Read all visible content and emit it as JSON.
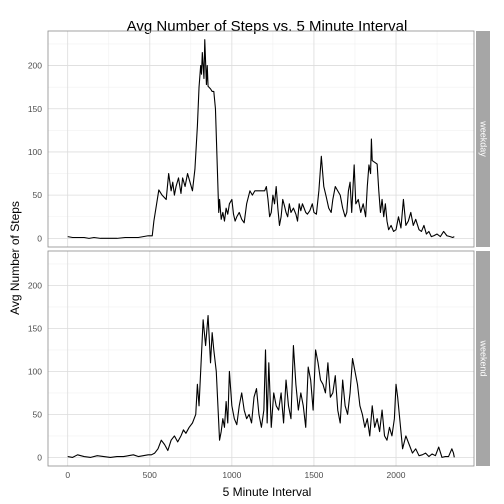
{
  "chart_data": {
    "type": "line",
    "title": "Avg Number of Steps vs. 5 Minute Interval",
    "xlabel": "5 Minute Interval",
    "ylabel": "Avg Number of Steps",
    "xlim": [
      -120,
      2475
    ],
    "ylim": [
      -10,
      240
    ],
    "x_ticks": [
      0,
      500,
      1000,
      1500,
      2000
    ],
    "y_ticks": [
      0,
      50,
      100,
      150,
      200
    ],
    "grid": true,
    "colors": {
      "line": "#000000",
      "strip": "#a6a6a6",
      "grid_major": "#dcdcdc",
      "grid_minor": "#f0f0f0",
      "frame": "#8c8c8c"
    },
    "panels": [
      {
        "facet": "weekday",
        "series": [
          {
            "x": [
              0,
              30,
              60,
              100,
              130,
              160,
              200,
              250,
              300,
              350,
              400,
              430,
              460,
              490,
              515,
              525,
              540,
              555,
              575,
              600,
              615,
              630,
              640,
              650,
              660,
              675,
              690,
              700,
              715,
              730,
              745,
              760,
              775,
              790,
              800,
              810,
              815,
              820,
              830,
              835,
              845,
              850,
              855,
              870,
              880,
              890,
              900,
              910,
              915,
              920,
              925,
              935,
              945,
              955,
              965,
              975,
              985,
              1000,
              1010,
              1020,
              1030,
              1045,
              1060,
              1075,
              1090,
              1110,
              1125,
              1140,
              1155,
              1170,
              1185,
              1200,
              1210,
              1220,
              1230,
              1240,
              1250,
              1260,
              1270,
              1280,
              1290,
              1300,
              1310,
              1320,
              1330,
              1340,
              1350,
              1360,
              1375,
              1390,
              1400,
              1410,
              1420,
              1430,
              1440,
              1450,
              1460,
              1475,
              1490,
              1500,
              1515,
              1530,
              1545,
              1560,
              1575,
              1590,
              1605,
              1615,
              1630,
              1645,
              1660,
              1675,
              1690,
              1700,
              1710,
              1720,
              1730,
              1745,
              1755,
              1770,
              1785,
              1800,
              1815,
              1825,
              1835,
              1845,
              1850,
              1855,
              1870,
              1885,
              1895,
              1905,
              1915,
              1925,
              1935,
              1945,
              1955,
              1970,
              1985,
              2000,
              2015,
              2030,
              2045,
              2060,
              2075,
              2090,
              2105,
              2120,
              2140,
              2155,
              2170,
              2185,
              2200,
              2215,
              2230,
              2250,
              2270,
              2290,
              2310,
              2330,
              2345,
              2355
            ],
            "y": [
              2,
              1,
              1,
              1,
              0,
              1,
              0,
              0,
              0,
              1,
              1,
              1,
              2,
              3,
              3,
              20,
              38,
              56,
              50,
              45,
              75,
              55,
              65,
              50,
              60,
              70,
              52,
              70,
              60,
              75,
              65,
              55,
              80,
              130,
              175,
              200,
              190,
              215,
              185,
              230,
              178,
              200,
              176,
              173,
              170,
              170,
              150,
              90,
              60,
              30,
              45,
              22,
              30,
              20,
              35,
              28,
              40,
              45,
              28,
              20,
              25,
              30,
              22,
              18,
              40,
              55,
              50,
              55,
              55,
              55,
              55,
              55,
              60,
              45,
              25,
              30,
              50,
              40,
              60,
              35,
              15,
              25,
              45,
              38,
              30,
              25,
              40,
              30,
              35,
              28,
              20,
              40,
              32,
              40,
              35,
              30,
              28,
              32,
              40,
              30,
              28,
              55,
              95,
              60,
              48,
              35,
              30,
              45,
              60,
              55,
              50,
              35,
              25,
              30,
              55,
              65,
              30,
              85,
              40,
              45,
              30,
              40,
              25,
              60,
              85,
              75,
              115,
              90,
              88,
              86,
              55,
              30,
              45,
              25,
              40,
              20,
              10,
              15,
              8,
              10,
              25,
              12,
              45,
              15,
              20,
              30,
              15,
              22,
              10,
              8,
              15,
              5,
              8,
              2,
              3,
              5,
              2,
              8,
              3,
              2,
              1,
              2
            ]
          }
        ]
      },
      {
        "facet": "weekend",
        "series": [
          {
            "x": [
              0,
              30,
              60,
              100,
              140,
              180,
              220,
              260,
              300,
              340,
              370,
              400,
              430,
              460,
              490,
              510,
              530,
              550,
              570,
              590,
              610,
              630,
              650,
              670,
              690,
              705,
              720,
              740,
              760,
              780,
              790,
              800,
              815,
              825,
              840,
              855,
              870,
              880,
              890,
              905,
              915,
              925,
              935,
              945,
              955,
              965,
              975,
              985,
              1000,
              1015,
              1030,
              1045,
              1060,
              1075,
              1090,
              1105,
              1120,
              1135,
              1150,
              1165,
              1180,
              1195,
              1205,
              1215,
              1225,
              1240,
              1255,
              1270,
              1285,
              1300,
              1315,
              1330,
              1345,
              1360,
              1375,
              1390,
              1405,
              1420,
              1435,
              1450,
              1465,
              1480,
              1495,
              1510,
              1525,
              1540,
              1555,
              1570,
              1585,
              1600,
              1615,
              1630,
              1645,
              1660,
              1675,
              1690,
              1705,
              1720,
              1735,
              1750,
              1765,
              1780,
              1795,
              1810,
              1825,
              1840,
              1855,
              1870,
              1885,
              1900,
              1915,
              1930,
              1945,
              1960,
              1975,
              1990,
              2000,
              2010,
              2025,
              2040,
              2060,
              2080,
              2100,
              2120,
              2140,
              2160,
              2180,
              2200,
              2220,
              2240,
              2260,
              2280,
              2300,
              2320,
              2340,
              2350,
              2355
            ],
            "y": [
              1,
              0,
              3,
              1,
              0,
              2,
              1,
              0,
              1,
              1,
              2,
              3,
              1,
              2,
              3,
              3,
              5,
              10,
              20,
              15,
              8,
              20,
              25,
              18,
              25,
              32,
              28,
              35,
              40,
              50,
              85,
              60,
              120,
              160,
              130,
              165,
              110,
              145,
              125,
              100,
              60,
              20,
              30,
              45,
              35,
              65,
              40,
              100,
              60,
              45,
              38,
              60,
              75,
              55,
              45,
              50,
              40,
              70,
              80,
              50,
              35,
              55,
              125,
              40,
              110,
              35,
              75,
              60,
              55,
              75,
              40,
              90,
              60,
              45,
              130,
              85,
              55,
              75,
              60,
              35,
              105,
              90,
              55,
              125,
              110,
              90,
              85,
              75,
              110,
              70,
              75,
              95,
              55,
              40,
              90,
              60,
              50,
              75,
              115,
              100,
              85,
              60,
              50,
              35,
              45,
              25,
              60,
              35,
              45,
              30,
              55,
              25,
              20,
              35,
              25,
              45,
              85,
              70,
              40,
              10,
              25,
              15,
              5,
              10,
              2,
              3,
              5,
              1,
              4,
              2,
              12,
              0,
              1,
              1,
              10,
              5,
              0
            ]
          }
        ]
      }
    ]
  }
}
